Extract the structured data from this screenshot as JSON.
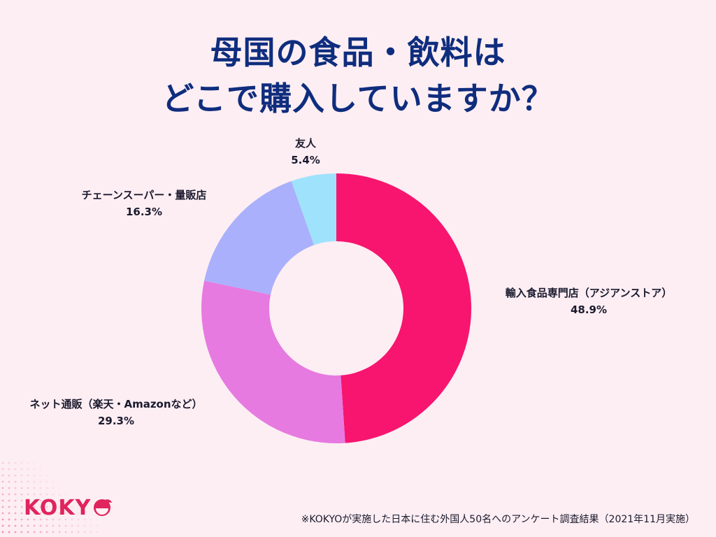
{
  "title": {
    "line1": "母国の食品・飲料は",
    "line2": "どこで購入していますか？"
  },
  "chart_data": {
    "type": "pie",
    "variant": "donut",
    "title": "母国の食品・飲料はどこで購入していますか？",
    "categories": [
      "輸入食品専門店（アジアンストア）",
      "ネット通販（楽天・Amazonなど）",
      "チェーンスーパー・量販店",
      "友人"
    ],
    "values": [
      48.9,
      29.3,
      16.3,
      5.4
    ],
    "value_labels": [
      "48.9%",
      "29.3%",
      "16.3%",
      "5.4%"
    ],
    "colors": [
      "#f7156f",
      "#e67ae0",
      "#aab0fb",
      "#9fe2fc"
    ],
    "start": "12 o'clock",
    "direction": "clockwise"
  },
  "footnote": "※KOKYOが実施した日本に住む外国人50名へのアンケート調査結果（2021年11月実施）",
  "brand": {
    "logo_text": "KOKY",
    "logo_icon": "kokyo-o-mark-icon",
    "accent_color": "#e0245e",
    "title_color": "#0f2d7e",
    "background_color": "#fdeef3"
  }
}
